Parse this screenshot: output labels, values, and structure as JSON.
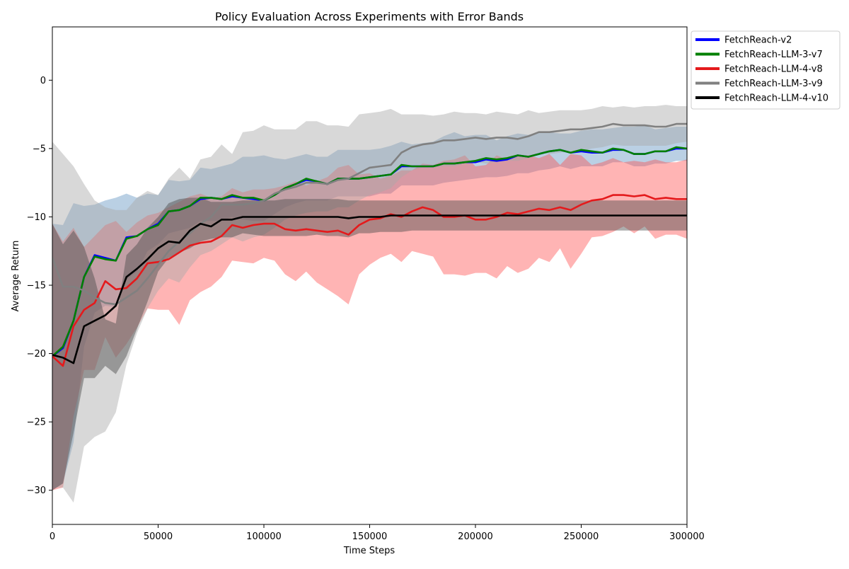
{
  "chart_data": {
    "type": "line",
    "title": "Policy Evaluation Across Experiments with Error Bands",
    "xlabel": "Time Steps",
    "ylabel": "Average Return",
    "xlim": [
      0,
      300000
    ],
    "ylim": [
      -32.5,
      3.9
    ],
    "xticks": [
      0,
      50000,
      100000,
      150000,
      200000,
      250000,
      300000
    ],
    "xtick_labels": [
      "0",
      "50000",
      "100000",
      "150000",
      "200000",
      "250000",
      "300000"
    ],
    "yticks": [
      -30,
      -25,
      -20,
      -15,
      -10,
      -5,
      0
    ],
    "ytick_labels": [
      "−30",
      "−25",
      "−20",
      "−15",
      "−10",
      "−5",
      "0"
    ],
    "grid": false,
    "legend_position": "outside-top-right",
    "x": [
      0,
      5000,
      10000,
      15000,
      20000,
      25000,
      30000,
      35000,
      40000,
      45000,
      50000,
      55000,
      60000,
      65000,
      70000,
      75000,
      80000,
      85000,
      90000,
      95000,
      100000,
      105000,
      110000,
      115000,
      120000,
      125000,
      130000,
      135000,
      140000,
      145000,
      150000,
      155000,
      160000,
      165000,
      170000,
      175000,
      180000,
      185000,
      190000,
      195000,
      200000,
      205000,
      210000,
      215000,
      220000,
      225000,
      230000,
      235000,
      240000,
      245000,
      250000,
      255000,
      260000,
      265000,
      270000,
      275000,
      280000,
      285000,
      290000,
      295000,
      300000
    ],
    "series": [
      {
        "name": "FetchReach-v2",
        "color": "#0000ff",
        "band_color": "#6fa8dc",
        "band_opacity": 0.3,
        "values": [
          -20.2,
          -19.6,
          -17.6,
          -14.4,
          -12.8,
          -13.0,
          -13.2,
          -11.5,
          -11.4,
          -10.9,
          -10.5,
          -9.6,
          -9.5,
          -9.2,
          -8.7,
          -8.6,
          -8.7,
          -8.5,
          -8.6,
          -8.7,
          -8.8,
          -8.4,
          -7.9,
          -7.6,
          -7.3,
          -7.4,
          -7.6,
          -7.2,
          -7.2,
          -7.2,
          -7.1,
          -7.0,
          -6.9,
          -6.3,
          -6.3,
          -6.3,
          -6.3,
          -6.1,
          -6.1,
          -6.0,
          -6.0,
          -5.8,
          -5.9,
          -5.8,
          -5.5,
          -5.6,
          -5.4,
          -5.2,
          -5.1,
          -5.3,
          -5.2,
          -5.3,
          -5.3,
          -5.1,
          -5.1,
          -5.4,
          -5.4,
          -5.2,
          -5.2,
          -5.0,
          -5.0
        ],
        "lower": [
          -30.0,
          -29.5,
          -26.5,
          -19.5,
          -17.0,
          -16.5,
          -16.6,
          -14.6,
          -14.0,
          -12.5,
          -12.0,
          -11.2,
          -11.0,
          -10.8,
          -10.3,
          -10.3,
          -10.3,
          -10.0,
          -10.2,
          -10.3,
          -10.3,
          -9.8,
          -9.3,
          -9.0,
          -8.8,
          -8.8,
          -8.8,
          -8.5,
          -8.5,
          -8.5,
          -8.5,
          -8.3,
          -8.3,
          -7.7,
          -7.7,
          -7.7,
          -7.7,
          -7.5,
          -7.4,
          -7.3,
          -7.2,
          -7.1,
          -7.1,
          -7.0,
          -6.8,
          -6.8,
          -6.6,
          -6.5,
          -6.3,
          -6.5,
          -6.3,
          -6.3,
          -6.3,
          -6.0,
          -6.0,
          -6.3,
          -6.3,
          -6.1,
          -6.1,
          -5.9,
          -5.9
        ],
        "upper": [
          -10.5,
          -10.6,
          -9.0,
          -9.2,
          -9.1,
          -8.8,
          -8.6,
          -8.3,
          -8.6,
          -8.3,
          -8.4,
          -7.3,
          -7.4,
          -7.3,
          -6.4,
          -6.5,
          -6.3,
          -6.1,
          -5.6,
          -5.6,
          -5.5,
          -5.7,
          -5.8,
          -5.6,
          -5.4,
          -5.6,
          -5.6,
          -5.1,
          -5.1,
          -5.1,
          -5.1,
          -5.0,
          -4.8,
          -4.5,
          -4.7,
          -4.6,
          -4.5,
          -4.1,
          -3.8,
          -4.1,
          -4.0,
          -4.0,
          -4.4,
          -4.1,
          -3.9,
          -4.0,
          -3.8,
          -3.8,
          -3.9,
          -3.9,
          -3.7,
          -3.6,
          -3.6,
          -3.5,
          -3.4,
          -3.4,
          -3.3,
          -3.6,
          -3.5,
          -3.4,
          -3.4
        ]
      },
      {
        "name": "FetchReach-LLM-3-v7",
        "color": "#008000",
        "band_color": "#7fa0c0",
        "band_opacity": 0.3,
        "values": [
          -20.2,
          -19.5,
          -17.6,
          -14.4,
          -12.9,
          -13.1,
          -13.2,
          -11.6,
          -11.4,
          -10.9,
          -10.6,
          -9.6,
          -9.5,
          -9.2,
          -8.6,
          -8.6,
          -8.7,
          -8.4,
          -8.6,
          -8.6,
          -8.8,
          -8.4,
          -7.9,
          -7.6,
          -7.2,
          -7.4,
          -7.6,
          -7.2,
          -7.2,
          -7.2,
          -7.1,
          -7.0,
          -6.9,
          -6.2,
          -6.3,
          -6.3,
          -6.3,
          -6.1,
          -6.1,
          -6.0,
          -5.9,
          -5.7,
          -5.8,
          -5.7,
          -5.5,
          -5.6,
          -5.4,
          -5.2,
          -5.1,
          -5.3,
          -5.1,
          -5.2,
          -5.3,
          -5.0,
          -5.1,
          -5.4,
          -5.4,
          -5.2,
          -5.2,
          -4.9,
          -5.0
        ],
        "lower": [
          -30.0,
          -29.5,
          -26.5,
          -19.5,
          -17.0,
          -16.5,
          -16.6,
          -14.6,
          -14.0,
          -12.5,
          -12.0,
          -11.2,
          -11.0,
          -10.8,
          -10.3,
          -10.3,
          -10.3,
          -10.0,
          -10.2,
          -10.3,
          -10.3,
          -9.8,
          -9.3,
          -9.0,
          -8.8,
          -8.8,
          -8.8,
          -8.5,
          -8.5,
          -8.5,
          -8.5,
          -8.3,
          -8.3,
          -7.7,
          -7.7,
          -7.7,
          -7.7,
          -7.5,
          -7.4,
          -7.3,
          -7.2,
          -7.1,
          -7.1,
          -7.0,
          -6.8,
          -6.8,
          -6.6,
          -6.5,
          -6.3,
          -6.5,
          -6.3,
          -6.3,
          -6.3,
          -6.0,
          -6.0,
          -6.3,
          -6.3,
          -6.1,
          -6.1,
          -5.9,
          -5.9
        ],
        "upper": [
          -10.5,
          -10.6,
          -9.0,
          -9.2,
          -9.1,
          -8.8,
          -8.6,
          -8.3,
          -8.6,
          -8.3,
          -8.4,
          -7.3,
          -7.4,
          -7.3,
          -6.4,
          -6.5,
          -6.3,
          -6.1,
          -5.6,
          -5.6,
          -5.5,
          -5.7,
          -5.8,
          -5.6,
          -5.4,
          -5.6,
          -5.6,
          -5.1,
          -5.1,
          -5.1,
          -5.1,
          -5.0,
          -4.8,
          -4.5,
          -4.7,
          -4.6,
          -4.5,
          -4.1,
          -3.8,
          -4.1,
          -4.0,
          -4.0,
          -4.4,
          -4.1,
          -3.9,
          -4.0,
          -3.8,
          -3.8,
          -3.9,
          -3.9,
          -3.7,
          -3.6,
          -3.6,
          -3.5,
          -3.4,
          -3.4,
          -3.3,
          -3.6,
          -3.5,
          -3.4,
          -3.4
        ]
      },
      {
        "name": "FetchReach-LLM-4-v8",
        "color": "#e41a1c",
        "band_color": "#ff4d4d",
        "band_opacity": 0.42,
        "values": [
          -20.2,
          -20.9,
          -18.0,
          -16.8,
          -16.3,
          -14.7,
          -15.3,
          -15.2,
          -14.5,
          -13.4,
          -13.3,
          -13.1,
          -12.6,
          -12.1,
          -11.9,
          -11.8,
          -11.4,
          -10.6,
          -10.8,
          -10.6,
          -10.5,
          -10.5,
          -10.9,
          -11.0,
          -10.9,
          -11.0,
          -11.1,
          -11.0,
          -11.3,
          -10.6,
          -10.2,
          -10.1,
          -9.8,
          -10.0,
          -9.6,
          -9.3,
          -9.5,
          -10.0,
          -10.0,
          -9.9,
          -10.2,
          -10.2,
          -10.0,
          -9.7,
          -9.8,
          -9.6,
          -9.4,
          -9.5,
          -9.3,
          -9.5,
          -9.1,
          -8.8,
          -8.7,
          -8.4,
          -8.4,
          -8.5,
          -8.4,
          -8.7,
          -8.6,
          -8.7,
          -8.7
        ],
        "lower": [
          -30.0,
          -29.8,
          -24.6,
          -21.2,
          -21.2,
          -18.8,
          -20.3,
          -19.3,
          -18.1,
          -16.7,
          -16.8,
          -16.8,
          -17.9,
          -16.1,
          -15.5,
          -15.1,
          -14.4,
          -13.2,
          -13.3,
          -13.4,
          -13.0,
          -13.2,
          -14.2,
          -14.7,
          -14.0,
          -14.8,
          -15.3,
          -15.8,
          -16.4,
          -14.2,
          -13.5,
          -13.0,
          -12.7,
          -13.3,
          -12.5,
          -12.7,
          -12.9,
          -14.2,
          -14.2,
          -14.3,
          -14.1,
          -14.1,
          -14.5,
          -13.6,
          -14.1,
          -13.8,
          -13.0,
          -13.3,
          -12.3,
          -13.8,
          -12.7,
          -11.5,
          -11.4,
          -11.1,
          -10.7,
          -11.2,
          -10.7,
          -11.6,
          -11.3,
          -11.3,
          -11.6
        ],
        "upper": [
          -10.5,
          -11.8,
          -10.8,
          -12.2,
          -11.4,
          -10.6,
          -10.3,
          -11.1,
          -10.4,
          -9.9,
          -9.7,
          -9.3,
          -8.9,
          -8.5,
          -8.3,
          -8.6,
          -8.5,
          -7.9,
          -8.2,
          -8.0,
          -8.0,
          -7.9,
          -7.7,
          -7.4,
          -7.7,
          -7.4,
          -7.1,
          -6.4,
          -6.2,
          -6.9,
          -6.8,
          -7.2,
          -7.0,
          -6.6,
          -6.6,
          -6.1,
          -6.2,
          -5.9,
          -5.8,
          -5.5,
          -6.3,
          -6.2,
          -5.5,
          -5.8,
          -5.5,
          -5.5,
          -5.7,
          -5.4,
          -6.2,
          -5.4,
          -5.5,
          -6.2,
          -6.0,
          -5.7,
          -6.0,
          -5.9,
          -6.0,
          -5.8,
          -6.0,
          -6.0,
          -5.8
        ]
      },
      {
        "name": "FetchReach-LLM-3-v9",
        "color": "#808080",
        "band_color": "#a8a8a8",
        "band_opacity": 0.45,
        "values": [
          -13.0,
          -15.1,
          -15.1,
          -15.4,
          -15.9,
          -16.3,
          -16.4,
          -15.9,
          -15.4,
          -14.5,
          -13.5,
          -12.5,
          -11.8,
          -11.2,
          -10.5,
          -10.0,
          -9.1,
          -9.1,
          -9.1,
          -9.0,
          -8.8,
          -8.3,
          -8.0,
          -7.8,
          -7.5,
          -7.5,
          -7.6,
          -7.3,
          -7.2,
          -6.8,
          -6.4,
          -6.3,
          -6.2,
          -5.3,
          -4.9,
          -4.7,
          -4.6,
          -4.4,
          -4.4,
          -4.3,
          -4.2,
          -4.3,
          -4.2,
          -4.2,
          -4.3,
          -4.1,
          -3.8,
          -3.8,
          -3.7,
          -3.6,
          -3.6,
          -3.5,
          -3.4,
          -3.2,
          -3.3,
          -3.3,
          -3.3,
          -3.4,
          -3.4,
          -3.2,
          -3.2
        ],
        "lower": [
          -29.8,
          -29.8,
          -30.9,
          -26.8,
          -26.1,
          -25.7,
          -24.3,
          -20.8,
          -18.5,
          -16.7,
          -15.4,
          -14.5,
          -14.8,
          -13.7,
          -12.8,
          -12.5,
          -12.0,
          -11.5,
          -11.8,
          -11.5,
          -11.3,
          -10.8,
          -10.2,
          -9.9,
          -9.7,
          -9.6,
          -9.6,
          -9.3,
          -9.3,
          -8.8,
          -8.4,
          -8.2,
          -7.9,
          -7.1,
          -6.6,
          -6.4,
          -6.4,
          -6.3,
          -6.3,
          -6.1,
          -6.0,
          -6.1,
          -6.0,
          -5.9,
          -5.9,
          -5.7,
          -5.3,
          -5.4,
          -5.3,
          -5.2,
          -5.2,
          -5.0,
          -4.9,
          -4.7,
          -4.8,
          -4.8,
          -4.8,
          -4.8,
          -4.8,
          -4.6,
          -4.5
        ],
        "upper": [
          -4.5,
          -5.4,
          -6.3,
          -7.6,
          -8.8,
          -9.3,
          -9.5,
          -9.5,
          -8.6,
          -8.1,
          -8.4,
          -7.2,
          -6.4,
          -7.2,
          -5.8,
          -5.6,
          -4.7,
          -5.4,
          -3.8,
          -3.7,
          -3.3,
          -3.6,
          -3.6,
          -3.6,
          -3.0,
          -3.0,
          -3.3,
          -3.3,
          -3.4,
          -2.5,
          -2.4,
          -2.3,
          -2.1,
          -2.5,
          -2.5,
          -2.5,
          -2.6,
          -2.5,
          -2.3,
          -2.4,
          -2.4,
          -2.5,
          -2.3,
          -2.4,
          -2.5,
          -2.2,
          -2.4,
          -2.3,
          -2.2,
          -2.2,
          -2.2,
          -2.1,
          -1.9,
          -2.0,
          -1.9,
          -2.0,
          -1.9,
          -1.9,
          -1.8,
          -1.9,
          -1.9
        ]
      },
      {
        "name": "FetchReach-LLM-4-v10",
        "color": "#000000",
        "band_color": "#4a4a4a",
        "band_opacity": 0.45,
        "values": [
          -20.1,
          -20.3,
          -20.7,
          -18.0,
          -17.6,
          -17.2,
          -16.5,
          -14.4,
          -13.8,
          -13.1,
          -12.3,
          -11.8,
          -11.9,
          -11.0,
          -10.5,
          -10.7,
          -10.2,
          -10.2,
          -10.0,
          -10.0,
          -10.0,
          -10.0,
          -10.0,
          -10.0,
          -10.0,
          -10.0,
          -10.0,
          -10.0,
          -10.1,
          -10.0,
          -10.0,
          -10.0,
          -9.9,
          -9.9,
          -9.9,
          -9.9,
          -9.9,
          -9.9,
          -9.9,
          -9.9,
          -9.9,
          -9.9,
          -9.9,
          -9.9,
          -9.9,
          -9.9,
          -9.9,
          -9.9,
          -9.9,
          -9.9,
          -9.9,
          -9.9,
          -9.9,
          -9.9,
          -9.9,
          -9.9,
          -9.9,
          -9.9,
          -9.9,
          -9.9,
          -9.9
        ],
        "lower": [
          -30.0,
          -29.5,
          -25.8,
          -21.8,
          -21.8,
          -20.9,
          -21.5,
          -20.2,
          -18.2,
          -16.2,
          -14.0,
          -13.0,
          -12.6,
          -12.3,
          -11.8,
          -11.6,
          -11.5,
          -11.5,
          -11.2,
          -11.3,
          -11.4,
          -11.4,
          -11.4,
          -11.4,
          -11.4,
          -11.3,
          -11.4,
          -11.4,
          -11.5,
          -11.2,
          -11.2,
          -11.1,
          -11.1,
          -11.1,
          -11.0,
          -11.0,
          -11.0,
          -11.0,
          -11.0,
          -11.0,
          -11.0,
          -11.0,
          -11.0,
          -11.0,
          -11.0,
          -11.0,
          -11.0,
          -11.0,
          -11.0,
          -11.0,
          -11.0,
          -11.0,
          -11.0,
          -11.0,
          -11.0,
          -11.0,
          -11.0,
          -11.0,
          -11.0,
          -11.0,
          -11.0
        ],
        "upper": [
          -10.5,
          -12.0,
          -11.0,
          -12.2,
          -14.5,
          -17.5,
          -17.8,
          -12.8,
          -12.0,
          -10.8,
          -10.0,
          -9.0,
          -8.7,
          -8.6,
          -8.6,
          -8.9,
          -8.9,
          -8.9,
          -8.8,
          -8.8,
          -8.8,
          -8.8,
          -8.7,
          -8.7,
          -8.7,
          -8.7,
          -8.7,
          -8.7,
          -8.8,
          -8.8,
          -8.8,
          -8.8,
          -8.8,
          -8.8,
          -8.8,
          -8.8,
          -8.8,
          -8.8,
          -8.8,
          -8.8,
          -8.8,
          -8.8,
          -8.8,
          -8.8,
          -8.8,
          -8.8,
          -8.8,
          -8.8,
          -8.8,
          -8.8,
          -8.8,
          -8.8,
          -8.8,
          -8.8,
          -8.8,
          -8.8,
          -8.8,
          -8.8,
          -8.8,
          -8.8,
          -8.8
        ]
      }
    ]
  }
}
